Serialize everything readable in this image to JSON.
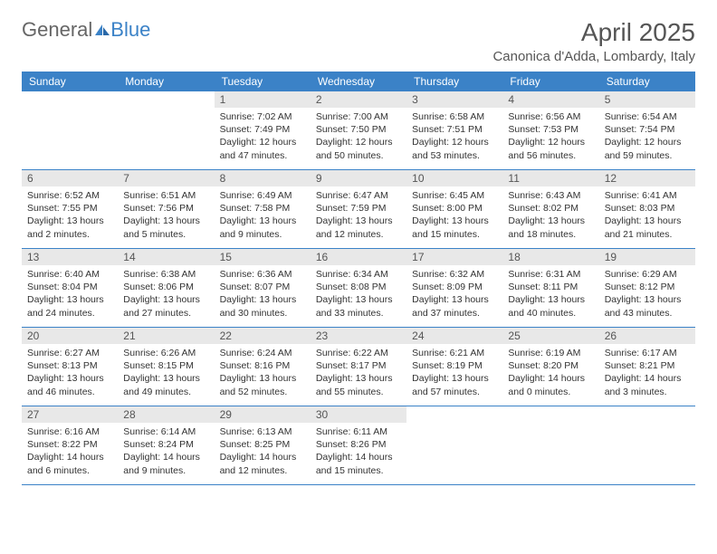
{
  "logo": {
    "text_general": "General",
    "text_blue": "Blue",
    "icon_color": "#3b82c7"
  },
  "title": "April 2025",
  "location": "Canonica d'Adda, Lombardy, Italy",
  "colors": {
    "header_bg": "#3b82c7",
    "header_text": "#ffffff",
    "day_num_bg": "#e8e8e8",
    "day_num_text": "#555555",
    "border": "#3b82c7",
    "body_text": "#333333",
    "title_text": "#555555"
  },
  "day_names": [
    "Sunday",
    "Monday",
    "Tuesday",
    "Wednesday",
    "Thursday",
    "Friday",
    "Saturday"
  ],
  "weeks": [
    [
      null,
      null,
      {
        "n": "1",
        "sunrise": "Sunrise: 7:02 AM",
        "sunset": "Sunset: 7:49 PM",
        "daylight1": "Daylight: 12 hours",
        "daylight2": "and 47 minutes."
      },
      {
        "n": "2",
        "sunrise": "Sunrise: 7:00 AM",
        "sunset": "Sunset: 7:50 PM",
        "daylight1": "Daylight: 12 hours",
        "daylight2": "and 50 minutes."
      },
      {
        "n": "3",
        "sunrise": "Sunrise: 6:58 AM",
        "sunset": "Sunset: 7:51 PM",
        "daylight1": "Daylight: 12 hours",
        "daylight2": "and 53 minutes."
      },
      {
        "n": "4",
        "sunrise": "Sunrise: 6:56 AM",
        "sunset": "Sunset: 7:53 PM",
        "daylight1": "Daylight: 12 hours",
        "daylight2": "and 56 minutes."
      },
      {
        "n": "5",
        "sunrise": "Sunrise: 6:54 AM",
        "sunset": "Sunset: 7:54 PM",
        "daylight1": "Daylight: 12 hours",
        "daylight2": "and 59 minutes."
      }
    ],
    [
      {
        "n": "6",
        "sunrise": "Sunrise: 6:52 AM",
        "sunset": "Sunset: 7:55 PM",
        "daylight1": "Daylight: 13 hours",
        "daylight2": "and 2 minutes."
      },
      {
        "n": "7",
        "sunrise": "Sunrise: 6:51 AM",
        "sunset": "Sunset: 7:56 PM",
        "daylight1": "Daylight: 13 hours",
        "daylight2": "and 5 minutes."
      },
      {
        "n": "8",
        "sunrise": "Sunrise: 6:49 AM",
        "sunset": "Sunset: 7:58 PM",
        "daylight1": "Daylight: 13 hours",
        "daylight2": "and 9 minutes."
      },
      {
        "n": "9",
        "sunrise": "Sunrise: 6:47 AM",
        "sunset": "Sunset: 7:59 PM",
        "daylight1": "Daylight: 13 hours",
        "daylight2": "and 12 minutes."
      },
      {
        "n": "10",
        "sunrise": "Sunrise: 6:45 AM",
        "sunset": "Sunset: 8:00 PM",
        "daylight1": "Daylight: 13 hours",
        "daylight2": "and 15 minutes."
      },
      {
        "n": "11",
        "sunrise": "Sunrise: 6:43 AM",
        "sunset": "Sunset: 8:02 PM",
        "daylight1": "Daylight: 13 hours",
        "daylight2": "and 18 minutes."
      },
      {
        "n": "12",
        "sunrise": "Sunrise: 6:41 AM",
        "sunset": "Sunset: 8:03 PM",
        "daylight1": "Daylight: 13 hours",
        "daylight2": "and 21 minutes."
      }
    ],
    [
      {
        "n": "13",
        "sunrise": "Sunrise: 6:40 AM",
        "sunset": "Sunset: 8:04 PM",
        "daylight1": "Daylight: 13 hours",
        "daylight2": "and 24 minutes."
      },
      {
        "n": "14",
        "sunrise": "Sunrise: 6:38 AM",
        "sunset": "Sunset: 8:06 PM",
        "daylight1": "Daylight: 13 hours",
        "daylight2": "and 27 minutes."
      },
      {
        "n": "15",
        "sunrise": "Sunrise: 6:36 AM",
        "sunset": "Sunset: 8:07 PM",
        "daylight1": "Daylight: 13 hours",
        "daylight2": "and 30 minutes."
      },
      {
        "n": "16",
        "sunrise": "Sunrise: 6:34 AM",
        "sunset": "Sunset: 8:08 PM",
        "daylight1": "Daylight: 13 hours",
        "daylight2": "and 33 minutes."
      },
      {
        "n": "17",
        "sunrise": "Sunrise: 6:32 AM",
        "sunset": "Sunset: 8:09 PM",
        "daylight1": "Daylight: 13 hours",
        "daylight2": "and 37 minutes."
      },
      {
        "n": "18",
        "sunrise": "Sunrise: 6:31 AM",
        "sunset": "Sunset: 8:11 PM",
        "daylight1": "Daylight: 13 hours",
        "daylight2": "and 40 minutes."
      },
      {
        "n": "19",
        "sunrise": "Sunrise: 6:29 AM",
        "sunset": "Sunset: 8:12 PM",
        "daylight1": "Daylight: 13 hours",
        "daylight2": "and 43 minutes."
      }
    ],
    [
      {
        "n": "20",
        "sunrise": "Sunrise: 6:27 AM",
        "sunset": "Sunset: 8:13 PM",
        "daylight1": "Daylight: 13 hours",
        "daylight2": "and 46 minutes."
      },
      {
        "n": "21",
        "sunrise": "Sunrise: 6:26 AM",
        "sunset": "Sunset: 8:15 PM",
        "daylight1": "Daylight: 13 hours",
        "daylight2": "and 49 minutes."
      },
      {
        "n": "22",
        "sunrise": "Sunrise: 6:24 AM",
        "sunset": "Sunset: 8:16 PM",
        "daylight1": "Daylight: 13 hours",
        "daylight2": "and 52 minutes."
      },
      {
        "n": "23",
        "sunrise": "Sunrise: 6:22 AM",
        "sunset": "Sunset: 8:17 PM",
        "daylight1": "Daylight: 13 hours",
        "daylight2": "and 55 minutes."
      },
      {
        "n": "24",
        "sunrise": "Sunrise: 6:21 AM",
        "sunset": "Sunset: 8:19 PM",
        "daylight1": "Daylight: 13 hours",
        "daylight2": "and 57 minutes."
      },
      {
        "n": "25",
        "sunrise": "Sunrise: 6:19 AM",
        "sunset": "Sunset: 8:20 PM",
        "daylight1": "Daylight: 14 hours",
        "daylight2": "and 0 minutes."
      },
      {
        "n": "26",
        "sunrise": "Sunrise: 6:17 AM",
        "sunset": "Sunset: 8:21 PM",
        "daylight1": "Daylight: 14 hours",
        "daylight2": "and 3 minutes."
      }
    ],
    [
      {
        "n": "27",
        "sunrise": "Sunrise: 6:16 AM",
        "sunset": "Sunset: 8:22 PM",
        "daylight1": "Daylight: 14 hours",
        "daylight2": "and 6 minutes."
      },
      {
        "n": "28",
        "sunrise": "Sunrise: 6:14 AM",
        "sunset": "Sunset: 8:24 PM",
        "daylight1": "Daylight: 14 hours",
        "daylight2": "and 9 minutes."
      },
      {
        "n": "29",
        "sunrise": "Sunrise: 6:13 AM",
        "sunset": "Sunset: 8:25 PM",
        "daylight1": "Daylight: 14 hours",
        "daylight2": "and 12 minutes."
      },
      {
        "n": "30",
        "sunrise": "Sunrise: 6:11 AM",
        "sunset": "Sunset: 8:26 PM",
        "daylight1": "Daylight: 14 hours",
        "daylight2": "and 15 minutes."
      },
      null,
      null,
      null
    ]
  ]
}
